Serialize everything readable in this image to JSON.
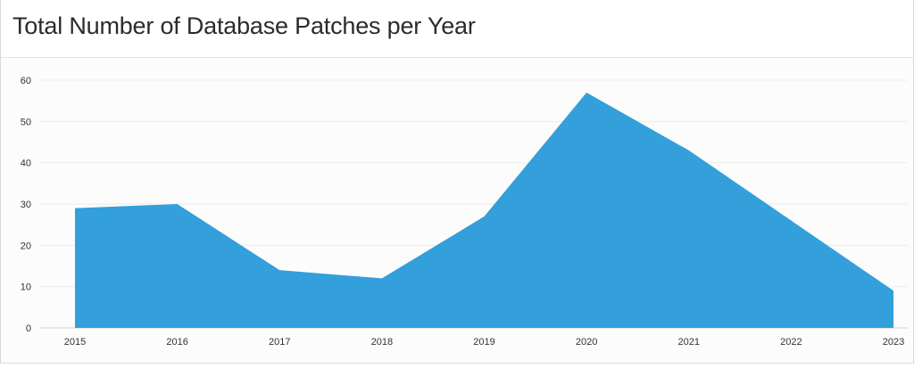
{
  "title": "Total Number of Database Patches per Year",
  "chart_data": {
    "type": "area",
    "title": "Total Number of Database Patches per Year",
    "xlabel": "",
    "ylabel": "",
    "categories": [
      "2015",
      "2016",
      "2017",
      "2018",
      "2019",
      "2020",
      "2021",
      "2022",
      "2023"
    ],
    "values": [
      29,
      30,
      14,
      12,
      27,
      57,
      43,
      26,
      9
    ],
    "ylim": [
      0,
      60
    ],
    "yticks": [
      0,
      10,
      20,
      30,
      40,
      50,
      60
    ],
    "grid": true,
    "legend": "none",
    "fill_color": "#339fdb"
  }
}
